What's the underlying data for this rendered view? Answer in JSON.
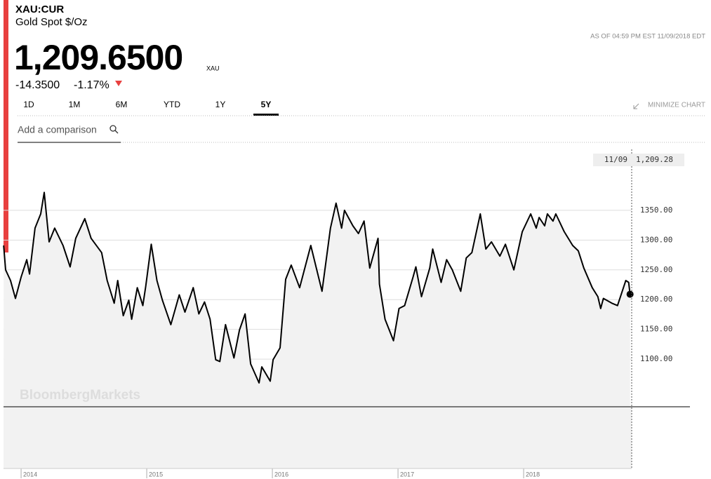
{
  "header": {
    "ticker": "XAU:CUR",
    "name": "Gold Spot $/Oz",
    "as_of": "AS OF 04:59 PM EST 11/09/2018 EDT",
    "price": "1,209.6500",
    "unit": "XAU",
    "change": "-14.3500",
    "change_pct": "-1.17%"
  },
  "tabs": [
    "1D",
    "1M",
    "6M",
    "YTD",
    "1Y",
    "5Y"
  ],
  "selected_tab": 5,
  "minimize": "MINIMIZE CHART",
  "comparison_placeholder": "Add a comparison",
  "watermark": "BloombergMarkets",
  "crosshair": {
    "date": "11/09",
    "value": "1,209.28"
  },
  "chart_data": {
    "type": "line",
    "color": "#000000",
    "fill": "#f2f2f2",
    "grid": true,
    "xlim": [
      2013.86,
      2018.86
    ],
    "xticks": [
      2014,
      2015,
      2016,
      2017,
      2018
    ],
    "ylim": [
      1020,
      1450
    ],
    "yticks": [
      {
        "value": 1100,
        "label": "1100.00"
      },
      {
        "value": 1150,
        "label": "1150.00"
      },
      {
        "value": 1200,
        "label": "1200.00"
      },
      {
        "value": 1250,
        "label": "1250.00"
      },
      {
        "value": 1300,
        "label": "1300.00"
      },
      {
        "value": 1350,
        "label": "1350.00"
      }
    ],
    "series": [
      {
        "name": "XAU:CUR",
        "x": [
          2013.861,
          2013.877,
          2013.916,
          2013.955,
          2014.0,
          2014.045,
          2014.067,
          2014.111,
          2014.156,
          2014.184,
          2014.223,
          2014.267,
          2014.334,
          2014.39,
          2014.435,
          2014.507,
          2014.557,
          2014.641,
          2014.685,
          2014.741,
          2014.769,
          2014.813,
          2014.857,
          2014.88,
          2014.925,
          2014.969,
          2014.992,
          2015.036,
          2015.081,
          2015.125,
          2015.192,
          2015.259,
          2015.304,
          2015.37,
          2015.415,
          2015.46,
          2015.504,
          2015.549,
          2015.582,
          2015.627,
          2015.694,
          2015.738,
          2015.783,
          2015.827,
          2015.894,
          2015.916,
          2015.983,
          2016.006,
          2016.061,
          2016.106,
          2016.15,
          2016.217,
          2016.306,
          2016.395,
          2016.462,
          2016.507,
          2016.551,
          2016.574,
          2016.641,
          2016.685,
          2016.73,
          2016.775,
          2016.841,
          2016.852,
          2016.897,
          2016.964,
          2017.008,
          2017.053,
          2017.12,
          2017.142,
          2017.187,
          2017.253,
          2017.276,
          2017.343,
          2017.387,
          2017.432,
          2017.499,
          2017.543,
          2017.588,
          2017.655,
          2017.699,
          2017.744,
          2017.811,
          2017.855,
          2017.922,
          2017.989,
          2018.056,
          2018.1,
          2018.123,
          2018.167,
          2018.189,
          2018.234,
          2018.256,
          2018.323,
          2018.39,
          2018.435,
          2018.479,
          2018.546,
          2018.591,
          2018.613,
          2018.635,
          2018.702,
          2018.747,
          2018.813,
          2018.836,
          2018.847
        ],
        "values": [
          1291,
          1250,
          1232,
          1202,
          1238,
          1267,
          1243,
          1320,
          1344,
          1380,
          1297,
          1320,
          1291,
          1255,
          1303,
          1336,
          1303,
          1279,
          1232,
          1194,
          1232,
          1173,
          1199,
          1167,
          1220,
          1190,
          1222,
          1293,
          1232,
          1199,
          1158,
          1208,
          1179,
          1220,
          1176,
          1196,
          1167,
          1099,
          1096,
          1158,
          1102,
          1149,
          1176,
          1092,
          1060,
          1087,
          1063,
          1099,
          1119,
          1234,
          1258,
          1220,
          1291,
          1214,
          1320,
          1362,
          1320,
          1350,
          1324,
          1311,
          1332,
          1253,
          1303,
          1226,
          1167,
          1131,
          1185,
          1190,
          1238,
          1255,
          1205,
          1253,
          1285,
          1229,
          1267,
          1250,
          1214,
          1270,
          1279,
          1344,
          1285,
          1297,
          1273,
          1293,
          1250,
          1314,
          1344,
          1320,
          1338,
          1324,
          1344,
          1332,
          1344,
          1314,
          1291,
          1282,
          1253,
          1220,
          1205,
          1185,
          1202,
          1194,
          1190,
          1232,
          1229,
          1209
        ]
      }
    ]
  }
}
